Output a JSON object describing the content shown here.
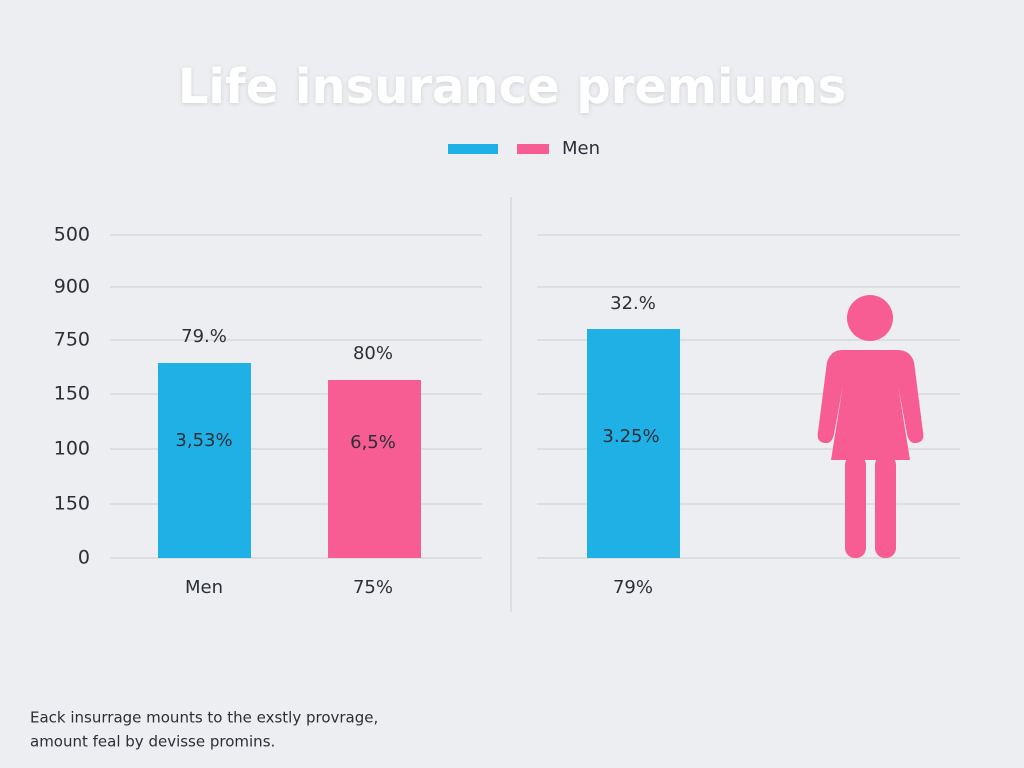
{
  "title": "Life insurance premiums",
  "legend": {
    "items": [
      "Men"
    ]
  },
  "left_panel": {
    "y_labels": [
      "500",
      "900",
      "750",
      "150",
      "100",
      "150",
      "0"
    ],
    "bars": [
      {
        "top_label": "79.%",
        "inner_label": "3,53%",
        "bottom_label": "Men"
      },
      {
        "top_label": "80%",
        "inner_label": "6,5%",
        "bottom_label": "75%"
      }
    ]
  },
  "right_panel": {
    "bars": [
      {
        "top_label": "32.%",
        "inner_label": "3.25%",
        "bottom_label": "79%"
      }
    ]
  },
  "footnote": [
    "Eack insurrage mounts to the exstly provrage,",
    "amount feal by devisse promins."
  ]
}
